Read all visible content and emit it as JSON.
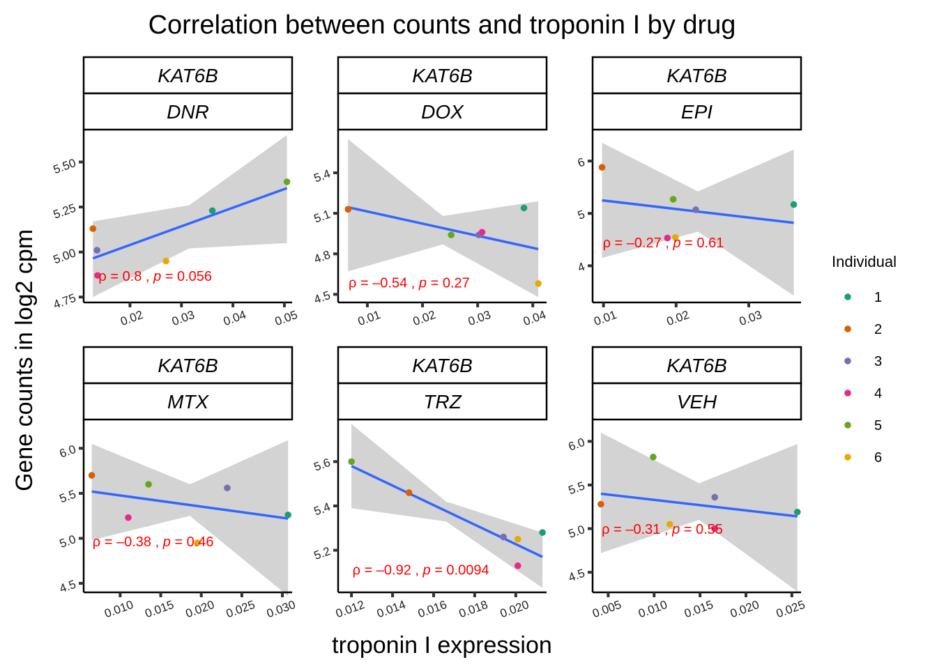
{
  "title": "Correlation between counts and troponin I by drug",
  "xlabel": "troponin I expression",
  "ylabel": "Gene counts in log2 cpm",
  "legend": {
    "title": "Individual",
    "entries": [
      {
        "label": "1",
        "color": "#1b9e77"
      },
      {
        "label": "2",
        "color": "#d95f02"
      },
      {
        "label": "3",
        "color": "#7570b3"
      },
      {
        "label": "4",
        "color": "#e7298a"
      },
      {
        "label": "5",
        "color": "#66a61e"
      },
      {
        "label": "6",
        "color": "#e6ab02"
      }
    ]
  },
  "colors": {
    "fit_line": "#3366ff",
    "ribbon": "#d3d3d3",
    "stat_text": "#ff0000"
  },
  "chart_data": [
    {
      "type": "scatter",
      "gene": "KAT6B",
      "drug": "DNR",
      "xlim": [
        0.011,
        0.0515
      ],
      "ylim": [
        4.72,
        5.68
      ],
      "xticks": [
        0.02,
        0.03,
        0.04,
        0.05
      ],
      "xtick_labels": [
        "0.02",
        "0.03",
        "0.04",
        "0.05"
      ],
      "yticks": [
        4.75,
        5.0,
        5.25,
        5.5
      ],
      "ytick_labels": [
        "4.75",
        "5.00",
        "5.25",
        "5.50"
      ],
      "points": [
        {
          "individual": "1",
          "x": 0.036,
          "y": 5.23
        },
        {
          "individual": "2",
          "x": 0.0128,
          "y": 5.13
        },
        {
          "individual": "3",
          "x": 0.0136,
          "y": 5.01
        },
        {
          "individual": "4",
          "x": 0.0137,
          "y": 4.87
        },
        {
          "individual": "5",
          "x": 0.0505,
          "y": 5.39
        },
        {
          "individual": "6",
          "x": 0.027,
          "y": 4.95
        }
      ],
      "fit": {
        "x": [
          0.0128,
          0.0505
        ],
        "y": [
          4.965,
          5.355
        ]
      },
      "ribbon": {
        "x": [
          0.0128,
          0.0315,
          0.0505
        ],
        "upper": [
          5.17,
          5.26,
          5.65
        ],
        "lower": [
          4.75,
          5.02,
          5.05
        ]
      },
      "stat": {
        "rho": "0.8",
        "p": "0.056"
      },
      "stat_pos": {
        "x": 0.0139,
        "y": 4.84
      }
    },
    {
      "type": "scatter",
      "gene": "KAT6B",
      "drug": "DOX",
      "xlim": [
        0.0047,
        0.0425
      ],
      "ylim": [
        4.44,
        5.72
      ],
      "xticks": [
        0.01,
        0.02,
        0.03,
        0.04
      ],
      "xtick_labels": [
        "0.01",
        "0.02",
        "0.03",
        "0.04"
      ],
      "yticks": [
        4.5,
        4.8,
        5.1,
        5.4
      ],
      "ytick_labels": [
        "4.5",
        "4.8",
        "5.1",
        "5.4"
      ],
      "points": [
        {
          "individual": "1",
          "x": 0.0384,
          "y": 5.14
        },
        {
          "individual": "2",
          "x": 0.0065,
          "y": 5.13
        },
        {
          "individual": "3",
          "x": 0.0302,
          "y": 4.94
        },
        {
          "individual": "4",
          "x": 0.0308,
          "y": 4.96
        },
        {
          "individual": "5",
          "x": 0.0252,
          "y": 4.94
        },
        {
          "individual": "6",
          "x": 0.041,
          "y": 4.58
        }
      ],
      "fit": {
        "x": [
          0.0065,
          0.041
        ],
        "y": [
          5.145,
          4.835
        ]
      },
      "ribbon": {
        "x": [
          0.0065,
          0.0237,
          0.041
        ],
        "upper": [
          5.65,
          5.08,
          5.19
        ],
        "lower": [
          4.67,
          4.87,
          4.48
        ]
      },
      "stat": {
        "rho": "–0.54",
        "p": "0.27"
      },
      "stat_pos": {
        "x": 0.0066,
        "y": 4.55
      }
    },
    {
      "type": "scatter",
      "gene": "KAT6B",
      "drug": "EPI",
      "xlim": [
        0.0085,
        0.0372
      ],
      "ylim": [
        3.3,
        6.6
      ],
      "xticks": [
        0.01,
        0.02,
        0.03
      ],
      "xtick_labels": [
        "0.01",
        "0.02",
        "0.03"
      ],
      "yticks": [
        4,
        5,
        6
      ],
      "ytick_labels": [
        "4",
        "5",
        "6"
      ],
      "points": [
        {
          "individual": "1",
          "x": 0.0362,
          "y": 5.17
        },
        {
          "individual": "2",
          "x": 0.0098,
          "y": 5.88
        },
        {
          "individual": "3",
          "x": 0.0227,
          "y": 5.07
        },
        {
          "individual": "4",
          "x": 0.0188,
          "y": 4.53
        },
        {
          "individual": "5",
          "x": 0.0196,
          "y": 5.27
        },
        {
          "individual": "6",
          "x": 0.0199,
          "y": 4.54
        }
      ],
      "fit": {
        "x": [
          0.0098,
          0.0362
        ],
        "y": [
          5.25,
          4.82
        ]
      },
      "ribbon": {
        "x": [
          0.0098,
          0.023,
          0.0362
        ],
        "upper": [
          6.35,
          5.42,
          6.22
        ],
        "lower": [
          4.15,
          4.65,
          3.43
        ]
      },
      "stat": {
        "rho": "–0.27",
        "p": "0.61"
      },
      "stat_pos": {
        "x": 0.0099,
        "y": 4.35
      }
    },
    {
      "type": "scatter",
      "gene": "KAT6B",
      "drug": "MTX",
      "xlim": [
        0.0055,
        0.0312
      ],
      "ylim": [
        4.4,
        6.32
      ],
      "xticks": [
        0.01,
        0.015,
        0.02,
        0.025,
        0.03
      ],
      "xtick_labels": [
        "0.010",
        "0.015",
        "0.020",
        "0.025",
        "0.030"
      ],
      "yticks": [
        4.5,
        5.0,
        5.5,
        6.0
      ],
      "ytick_labels": [
        "4.5",
        "5.0",
        "5.5",
        "6.0"
      ],
      "points": [
        {
          "individual": "1",
          "x": 0.0307,
          "y": 5.26
        },
        {
          "individual": "2",
          "x": 0.0065,
          "y": 5.7
        },
        {
          "individual": "3",
          "x": 0.0232,
          "y": 5.56
        },
        {
          "individual": "4",
          "x": 0.011,
          "y": 5.23
        },
        {
          "individual": "5",
          "x": 0.0135,
          "y": 5.6
        },
        {
          "individual": "6",
          "x": 0.0195,
          "y": 4.95
        }
      ],
      "fit": {
        "x": [
          0.0065,
          0.0307
        ],
        "y": [
          5.52,
          5.22
        ]
      },
      "ribbon": {
        "x": [
          0.0065,
          0.0186,
          0.0307
        ],
        "upper": [
          6.05,
          5.6,
          6.09
        ],
        "lower": [
          4.98,
          5.25,
          4.36
        ]
      },
      "stat": {
        "rho": "–0.38",
        "p": "0.46"
      },
      "stat_pos": {
        "x": 0.0066,
        "y": 4.91
      }
    },
    {
      "type": "scatter",
      "gene": "KAT6B",
      "drug": "TRZ",
      "xlim": [
        0.01135,
        0.0215
      ],
      "ylim": [
        5.01,
        5.79
      ],
      "xticks": [
        0.012,
        0.014,
        0.016,
        0.018,
        0.02
      ],
      "xtick_labels": [
        "0.012",
        "0.014",
        "0.016",
        "0.018",
        "0.020"
      ],
      "yticks": [
        5.2,
        5.4,
        5.6
      ],
      "ytick_labels": [
        "5.2",
        "5.4",
        "5.6"
      ],
      "points": [
        {
          "individual": "1",
          "x": 0.0213,
          "y": 5.28
        },
        {
          "individual": "2",
          "x": 0.0148,
          "y": 5.46
        },
        {
          "individual": "3",
          "x": 0.0194,
          "y": 5.26
        },
        {
          "individual": "4",
          "x": 0.0201,
          "y": 5.13
        },
        {
          "individual": "5",
          "x": 0.012,
          "y": 5.6
        },
        {
          "individual": "6",
          "x": 0.0201,
          "y": 5.25
        }
      ],
      "fit": {
        "x": [
          0.012,
          0.0213
        ],
        "y": [
          5.58,
          5.17
        ]
      },
      "ribbon": {
        "x": [
          0.012,
          0.0166,
          0.0213
        ],
        "upper": [
          5.77,
          5.42,
          5.28
        ],
        "lower": [
          5.39,
          5.33,
          5.03
        ]
      },
      "stat": {
        "rho": "–0.92",
        "p": "0.0094"
      },
      "stat_pos": {
        "x": 0.01205,
        "y": 5.09
      }
    },
    {
      "type": "scatter",
      "gene": "KAT6B",
      "drug": "VEH",
      "xlim": [
        0.0033,
        0.026
      ],
      "ylim": [
        4.27,
        6.25
      ],
      "xticks": [
        0.005,
        0.01,
        0.015,
        0.02,
        0.025
      ],
      "xtick_labels": [
        "0.005",
        "0.010",
        "0.015",
        "0.020",
        "0.025"
      ],
      "yticks": [
        4.5,
        5.0,
        5.5,
        6.0
      ],
      "ytick_labels": [
        "4.5",
        "5.0",
        "5.5",
        "6.0"
      ],
      "points": [
        {
          "individual": "1",
          "x": 0.0256,
          "y": 5.19
        },
        {
          "individual": "2",
          "x": 0.0042,
          "y": 5.28
        },
        {
          "individual": "3",
          "x": 0.0166,
          "y": 5.36
        },
        {
          "individual": "4",
          "x": 0.0166,
          "y": 5.0
        },
        {
          "individual": "5",
          "x": 0.0099,
          "y": 5.82
        },
        {
          "individual": "6",
          "x": 0.0117,
          "y": 5.05
        }
      ],
      "fit": {
        "x": [
          0.0042,
          0.0256
        ],
        "y": [
          5.4,
          5.14
        ]
      },
      "ribbon": {
        "x": [
          0.0042,
          0.0149,
          0.0256
        ],
        "upper": [
          6.1,
          5.52,
          5.97
        ],
        "lower": [
          4.72,
          5.1,
          4.28
        ]
      },
      "stat": {
        "rho": "–0.31",
        "p": "0.55"
      },
      "stat_pos": {
        "x": 0.0043,
        "y": 4.94
      }
    }
  ]
}
